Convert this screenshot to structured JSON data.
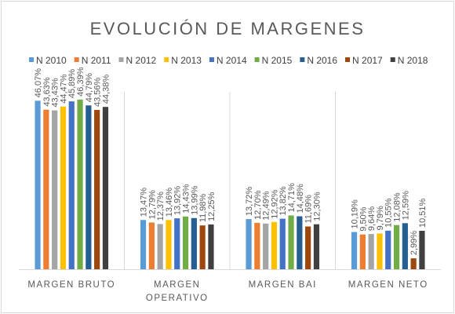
{
  "chart_data": {
    "type": "bar",
    "title": "EVOLUCIÓN DE MARGENES",
    "xlabel": "",
    "ylabel": "",
    "ylim": [
      0,
      50
    ],
    "grid": "vertical separators between groups",
    "legend_position": "top",
    "categories": [
      [
        "MARGEN BRUTO"
      ],
      [
        "MARGEN",
        "OPERATIVO"
      ],
      [
        "MARGEN BAI"
      ],
      [
        "MARGEN NETO"
      ]
    ],
    "series": [
      {
        "name": "N 2010",
        "color": "#5b9bd5",
        "values": [
          46.07,
          13.47,
          13.72,
          10.19
        ],
        "labels": [
          "46,07%",
          "13,47%",
          "13,72%",
          "10,19%"
        ]
      },
      {
        "name": "N 2011",
        "color": "#ed7d31",
        "values": [
          43.63,
          12.79,
          12.7,
          9.5
        ],
        "labels": [
          "43,63%",
          "12,79%",
          "12,70%",
          "9,50%"
        ]
      },
      {
        "name": "N 2012",
        "color": "#a5a5a5",
        "values": [
          43.43,
          12.37,
          12.49,
          9.64
        ],
        "labels": [
          "43,43%",
          "12,37%",
          "12,49%",
          "9,64%"
        ]
      },
      {
        "name": "N 2013",
        "color": "#ffc000",
        "values": [
          44.47,
          13.46,
          12.92,
          9.79
        ],
        "labels": [
          "44,47%",
          "13,46%",
          "12,92%",
          "9,79%"
        ]
      },
      {
        "name": "N 2014",
        "color": "#4472c4",
        "values": [
          45.89,
          13.92,
          13.82,
          10.55
        ],
        "labels": [
          "45,89%",
          "13,92%",
          "13,82%",
          "10,55%"
        ]
      },
      {
        "name": "N 2015",
        "color": "#70ad47",
        "values": [
          46.39,
          14.43,
          14.71,
          12.08
        ],
        "labels": [
          "46,39%",
          "14,43%",
          "14,71%",
          "12,08%"
        ]
      },
      {
        "name": "N 2016",
        "color": "#255e91",
        "values": [
          44.79,
          13.99,
          14.48,
          12.59
        ],
        "labels": [
          "44,79%",
          "13,99%",
          "14,48%",
          "12,59%"
        ]
      },
      {
        "name": "N 2017",
        "color": "#9e480e",
        "values": [
          43.56,
          11.98,
          11.69,
          2.99
        ],
        "labels": [
          "43,56%",
          "11,98%",
          "11,69%",
          "2,99%"
        ]
      },
      {
        "name": "N 2018",
        "color": "#404040",
        "values": [
          44.38,
          12.25,
          12.3,
          10.51
        ],
        "labels": [
          "44,38%",
          "12,25%",
          "12,30%",
          "10,51%"
        ]
      }
    ]
  }
}
